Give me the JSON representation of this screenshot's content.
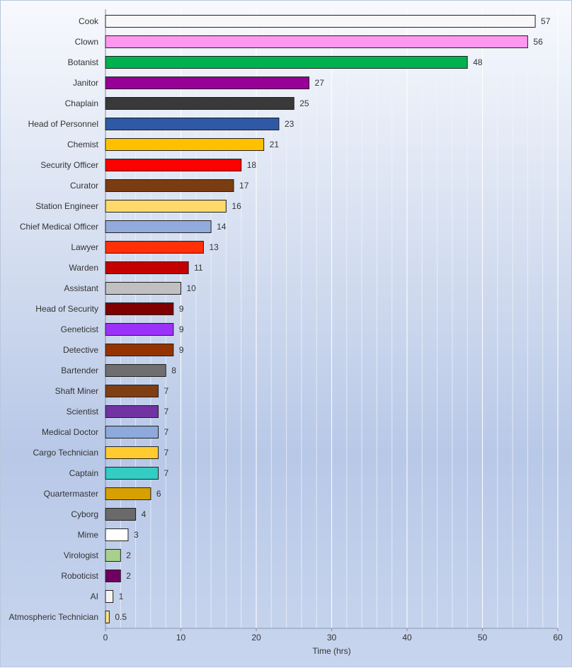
{
  "chart_data": {
    "type": "bar",
    "orientation": "horizontal",
    "title": "",
    "xlabel": "Time (hrs)",
    "ylabel": "",
    "xlim": [
      0,
      60
    ],
    "xticks": [
      0,
      10,
      20,
      30,
      40,
      50,
      60
    ],
    "x_minor_step": 2,
    "grid": true,
    "legend": false,
    "categories": [
      "Cook",
      "Clown",
      "Botanist",
      "Janitor",
      "Chaplain",
      "Head of Personnel",
      "Chemist",
      "Security Officer",
      "Curator",
      "Station Engineer",
      "Chief Medical Officer",
      "Lawyer",
      "Warden",
      "Assistant",
      "Head of Security",
      "Geneticist",
      "Detective",
      "Bartender",
      "Shaft Miner",
      "Scientist",
      "Medical Doctor",
      "Cargo Technician",
      "Captain",
      "Quartermaster",
      "Cyborg",
      "Mime",
      "Virologist",
      "Roboticist",
      "AI",
      "Atmospheric Technician"
    ],
    "values": [
      57,
      56,
      48,
      27,
      25,
      23,
      21,
      18,
      17,
      16,
      14,
      13,
      11,
      10,
      9,
      9,
      9,
      8,
      7,
      7,
      7,
      7,
      7,
      6,
      4,
      3,
      2,
      2,
      1,
      0.5
    ],
    "value_labels": [
      "57",
      "56",
      "48",
      "27",
      "25",
      "23",
      "21",
      "18",
      "17",
      "16",
      "14",
      "13",
      "11",
      "10",
      "9",
      "9",
      "9",
      "8",
      "7",
      "7",
      "7",
      "7",
      "7",
      "6",
      "4",
      "3",
      "2",
      "2",
      "1",
      "0.5"
    ],
    "colors": [
      "#f8f8fb",
      "#fd98ee",
      "#00b14f",
      "#970096",
      "#393939",
      "#2f58a5",
      "#ffc000",
      "#ff0000",
      "#7a3d12",
      "#ffd96a",
      "#92abdc",
      "#ff2f08",
      "#c30000",
      "#c0c0c0",
      "#7f0000",
      "#9b32fa",
      "#943300",
      "#6f6f6f",
      "#7f3f12",
      "#7132a2",
      "#8eaadc",
      "#ffcb2f",
      "#33cdc4",
      "#d6a100",
      "#6a6a6a",
      "#ffffff",
      "#a8d08d",
      "#6f005f",
      "#f4f4f4",
      "#ffe58f"
    ]
  }
}
